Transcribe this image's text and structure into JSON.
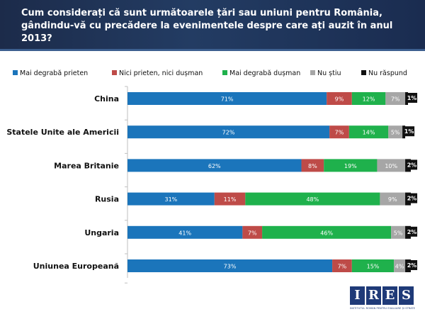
{
  "header": {
    "title": "Cum considerați că sunt următoarele țări sau uniuni pentru România, gândindu-vă cu precădere la evenimentele despre care ați auzit în anul 2013?"
  },
  "legend": {
    "items": [
      {
        "label": "Mai degrabă prieten",
        "color": "#1b75bb"
      },
      {
        "label": "Nici prieten, nici dușman",
        "color": "#be4b48"
      },
      {
        "label": "Mai degrabă dușman",
        "color": "#1fb14c"
      },
      {
        "label": "Nu știu",
        "color": "#a6a6a6"
      },
      {
        "label": "Nu răspund",
        "color": "#111111"
      }
    ]
  },
  "chart_data": {
    "type": "bar",
    "orientation": "horizontal",
    "stacked": true,
    "title": "Cum considerați că sunt următoarele țări sau uniuni pentru România, gândindu-vă cu precădere la evenimentele despre care ați auzit în anul 2013?",
    "categories": [
      "China",
      "Statele Unite ale Americii",
      "Marea Britanie",
      "Rusia",
      "Ungaria",
      "Uniunea Europeană"
    ],
    "series": [
      {
        "name": "Mai degrabă prieten",
        "color": "#1b75bb",
        "values": [
          71,
          72,
          62,
          31,
          41,
          73
        ]
      },
      {
        "name": "Nici prieten, nici dușman",
        "color": "#be4b48",
        "values": [
          9,
          7,
          8,
          11,
          7,
          7
        ]
      },
      {
        "name": "Mai degrabă dușman",
        "color": "#1fb14c",
        "values": [
          12,
          14,
          19,
          48,
          46,
          15
        ]
      },
      {
        "name": "Nu știu",
        "color": "#a6a6a6",
        "values": [
          7,
          5,
          10,
          9,
          5,
          4
        ]
      },
      {
        "name": "Nu răspund",
        "color": "#111111",
        "values": [
          1,
          1,
          2,
          2,
          2,
          2
        ]
      }
    ],
    "value_suffix": "%",
    "xlim": [
      0,
      100
    ],
    "xlabel": "",
    "ylabel": "",
    "grid": false,
    "legend_position": "top"
  },
  "logo": {
    "letters": [
      "I",
      "R",
      "E",
      "S"
    ],
    "subtitle": "INSTITUTUL ROMÂN PENTRU EVALUARE ȘI STRATEGIE"
  }
}
